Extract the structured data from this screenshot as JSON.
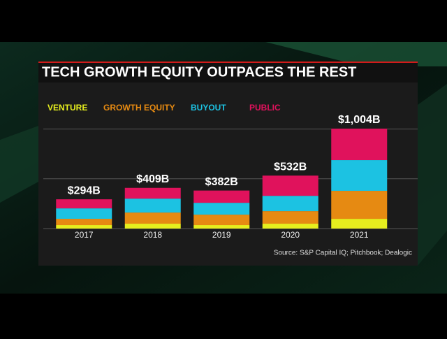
{
  "chart_data": {
    "type": "stacked-bar",
    "title": "TECH GROWTH EQUITY OUTPACES THE REST",
    "source": "Source: S&P Capital IQ; Pitchbook; Dealogic",
    "categories": [
      "2017",
      "2018",
      "2019",
      "2020",
      "2021"
    ],
    "series": [
      {
        "name": "VENTURE",
        "color": "#e6ee1e",
        "values": [
          35,
          49,
          35,
          49,
          98
        ]
      },
      {
        "name": "GROWTH EQUITY",
        "color": "#e68a12",
        "values": [
          63,
          112,
          105,
          126,
          281
        ]
      },
      {
        "name": "BUYOUT",
        "color": "#1cc2e2",
        "values": [
          105,
          140,
          119,
          154,
          309
        ]
      },
      {
        "name": "PUBLIC",
        "color": "#e0125c",
        "values": [
          91,
          108,
          123,
          203,
          316
        ]
      }
    ],
    "totals": {
      "values": [
        294,
        409,
        382,
        532,
        1004
      ],
      "value_labels": [
        "$294B",
        "$409B",
        "$382B",
        "$532B",
        "$1,004B"
      ]
    },
    "ylim": [
      0,
      1000
    ],
    "yticks": [
      0,
      500,
      1000
    ],
    "grid": true
  }
}
